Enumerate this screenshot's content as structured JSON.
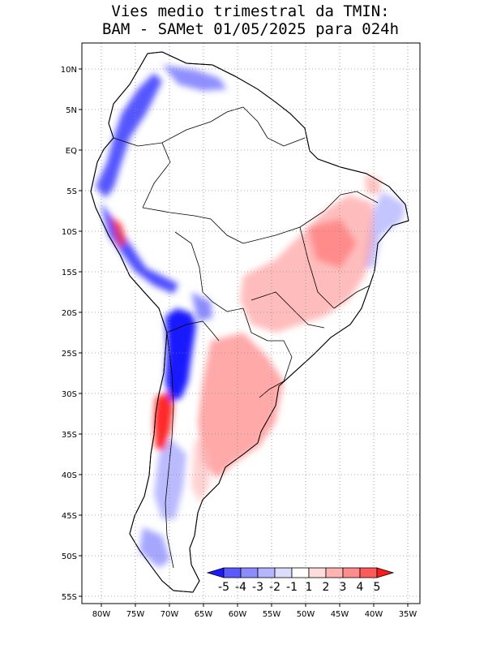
{
  "title": {
    "line1": "Vies medio trimestral da TMIN:",
    "line2": "BAM - SAMet 01/05/2025  para 024h"
  },
  "map": {
    "lon_range": [
      -83,
      -34
    ],
    "lat_range": [
      -56,
      13
    ],
    "lat_ticks": [
      "10N",
      "5N",
      "EQ",
      "5S",
      "10S",
      "15S",
      "20S",
      "25S",
      "30S",
      "35S",
      "40S",
      "45S",
      "50S",
      "55S"
    ],
    "lon_ticks": [
      "80W",
      "75W",
      "70W",
      "65W",
      "60W",
      "55W",
      "50W",
      "45W",
      "40W",
      "35W"
    ],
    "gridlines": true
  },
  "colorbar": {
    "labels": [
      "-5",
      "-4",
      "-3",
      "-2",
      "-1",
      "1",
      "2",
      "3",
      "4",
      "5"
    ],
    "colors": [
      "#1a1aff",
      "#5a5aff",
      "#8c8cff",
      "#b4b4ff",
      "#dcdcff",
      "#ffffff",
      "#ffdcdc",
      "#ffb4b4",
      "#ff8c8c",
      "#ff5a5a",
      "#ff1a1a"
    ]
  }
}
